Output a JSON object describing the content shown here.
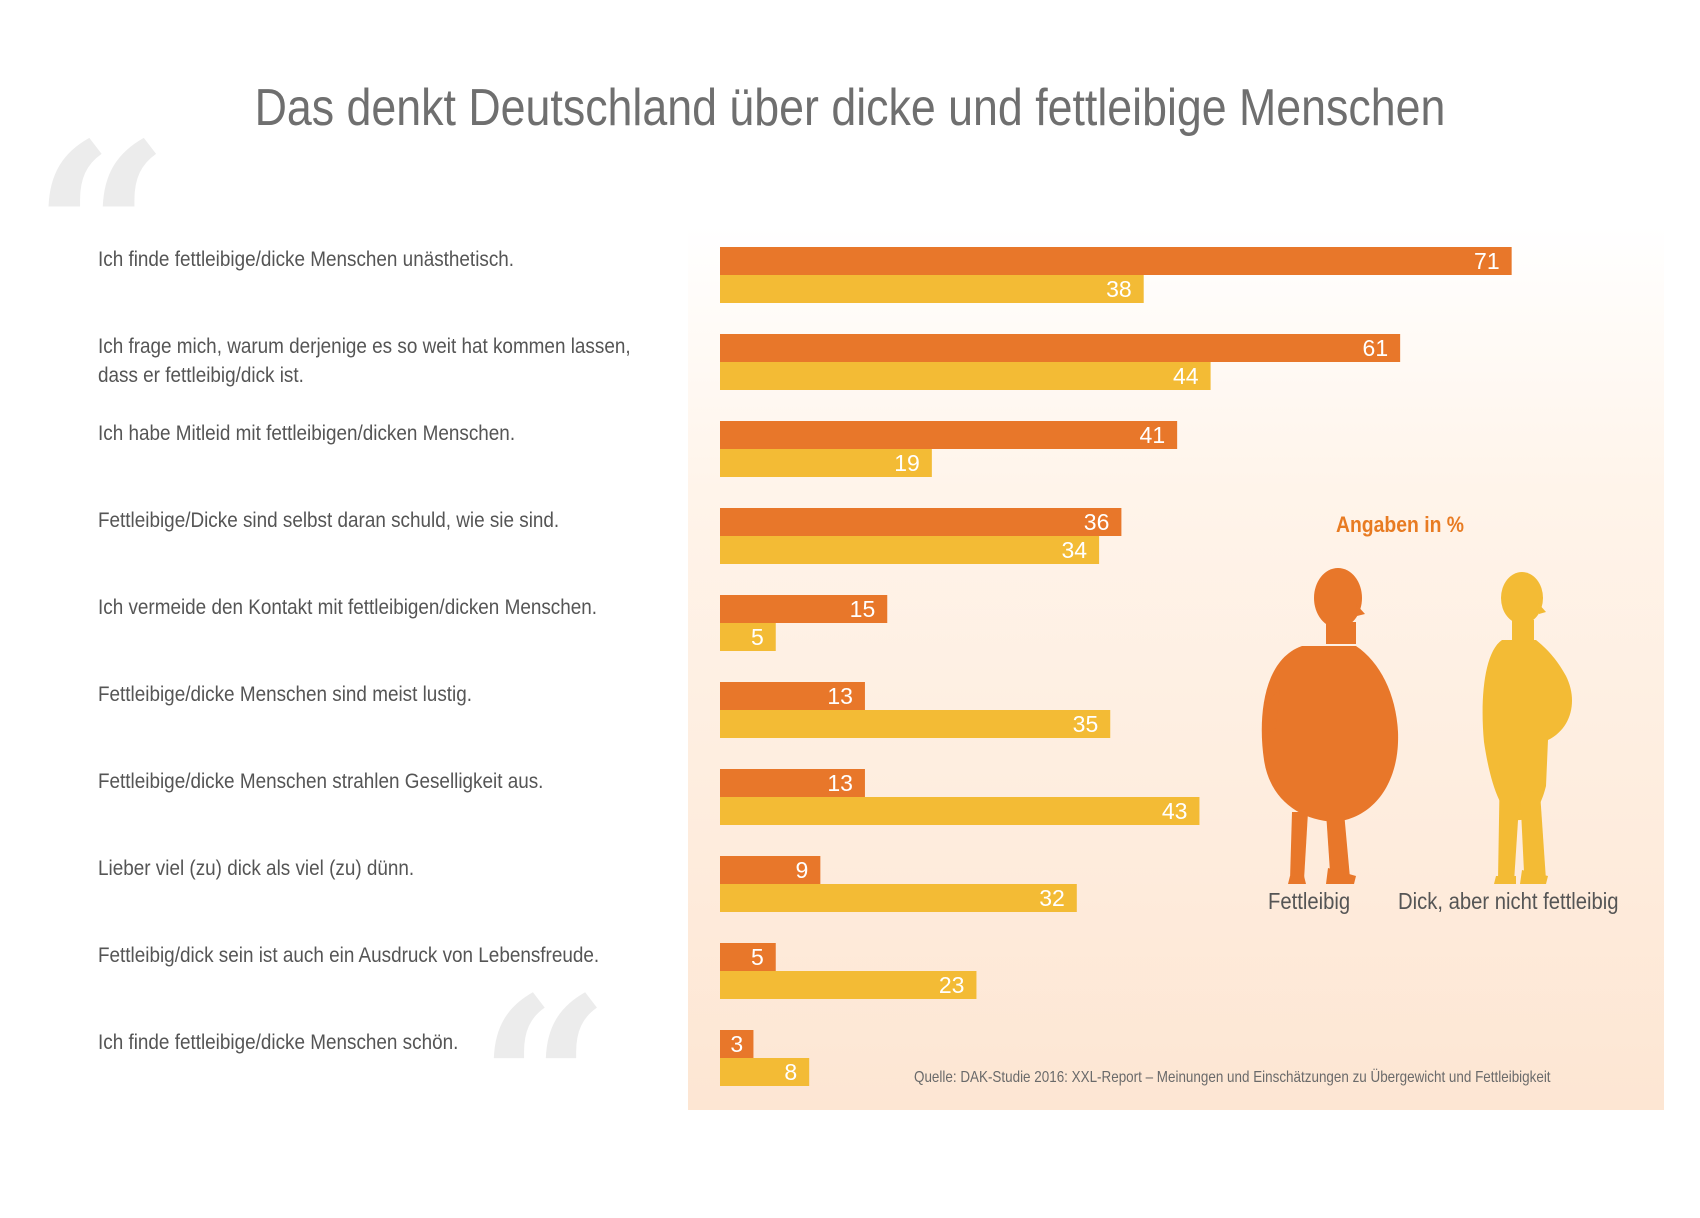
{
  "chart_data": {
    "type": "bar",
    "orientation": "horizontal",
    "title": "Das denkt Deutschland über dicke und fettleibige Menschen",
    "unit_label": "Angaben in %",
    "categories": [
      "Ich finde fettleibige/dicke Menschen unästhetisch.",
      "Ich frage mich, warum derjenige es so weit hat kommen lassen,\ndass er fettleibig/dick ist.",
      "Ich habe Mitleid mit fettleibigen/dicken Menschen.",
      "Fettleibige/Dicke sind selbst daran schuld, wie sie sind.",
      "Ich vermeide den Kontakt mit fettleibigen/dicken Menschen.",
      "Fettleibige/dicke Menschen sind meist lustig.",
      "Fettleibige/dicke Menschen strahlen Geselligkeit aus.",
      "Lieber viel (zu) dick als viel (zu) dünn.",
      "Fettleibig/dick sein ist auch ein Ausdruck von Lebensfreude.",
      "Ich finde fettleibige/dicke Menschen schön."
    ],
    "series": [
      {
        "name": "Fettleibig",
        "color": "#e8772a",
        "values": [
          71,
          61,
          41,
          36,
          15,
          13,
          13,
          9,
          5,
          3
        ]
      },
      {
        "name": "Dick, aber nicht fettleibig",
        "color": "#f3bb35",
        "values": [
          38,
          44,
          19,
          34,
          5,
          35,
          43,
          32,
          23,
          8
        ]
      }
    ],
    "xlim": [
      0,
      100
    ],
    "grid": false,
    "legend": "right, with figure silhouettes",
    "source": "Quelle: DAK-Studie 2016: XXL-Report – Meinungen und Einschätzungen zu Übergewicht und Fettleibigkeit"
  },
  "legend_icons": [
    "obese-person-silhouette-icon",
    "overweight-person-silhouette-icon"
  ]
}
